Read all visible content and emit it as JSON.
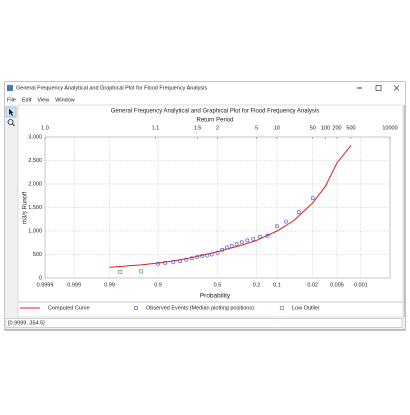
{
  "window": {
    "title": "General Frequency Analytical and Graphical Plot for Flood Frequency Analysis",
    "menu": [
      "File",
      "Edit",
      "View",
      "Window"
    ],
    "status": "[0.9999, 354.5]"
  },
  "chart_data": {
    "type": "probability-plot",
    "title": "General Frequency Analytical and Graphical Plot for Flood Frequency Analysis",
    "x_label": "Probability",
    "x2_label": "Return Period",
    "y_label": "m3/s Runoff",
    "xscale": "normal-probability",
    "xlim": [
      0.9999,
      0.0001
    ],
    "xticks": [
      0.9999,
      0.999,
      0.99,
      0.9,
      0.5,
      0.2,
      0.1,
      0.02,
      0.005,
      0.001
    ],
    "x2ticks": [
      {
        "value": 1.0001,
        "label": "1.0"
      },
      1.1,
      1.5,
      2,
      5,
      10,
      50,
      100,
      200,
      500,
      10000
    ],
    "ylim": [
      0,
      3000
    ],
    "yticks": [
      0,
      500,
      {
        "value": 1000,
        "label": "1,000"
      },
      {
        "value": 1500,
        "label": "1,500"
      },
      {
        "value": 2000,
        "label": "2,000"
      },
      {
        "value": 2500,
        "label": "2,500"
      },
      {
        "value": 3000,
        "label": "3,000"
      }
    ],
    "grid": true,
    "series": [
      {
        "name": "Computed Curve",
        "color": "#e02020",
        "marker": "line",
        "x": [
          0.99,
          0.95,
          0.9,
          0.8,
          0.7,
          0.5,
          0.3,
          0.2,
          0.1,
          0.05,
          0.02,
          0.01,
          0.005,
          0.002
        ],
        "values": [
          230,
          280,
          320,
          380,
          440,
          560,
          700,
          800,
          1000,
          1220,
          1600,
          1950,
          2450,
          2820
        ]
      },
      {
        "name": "Observed Events (Median plotting positions)",
        "color": "#3a3ad0",
        "marker": "circle",
        "x": [
          0.9,
          0.87,
          0.83,
          0.79,
          0.75,
          0.71,
          0.67,
          0.63,
          0.59,
          0.55,
          0.5,
          0.46,
          0.42,
          0.38,
          0.34,
          0.3,
          0.26,
          0.22,
          0.18,
          0.14,
          0.1,
          0.07,
          0.04,
          0.02
        ],
        "values": [
          300,
          320,
          340,
          360,
          390,
          420,
          450,
          470,
          480,
          500,
          540,
          600,
          650,
          680,
          720,
          760,
          800,
          830,
          880,
          900,
          1100,
          1200,
          1400,
          1700
        ]
      },
      {
        "name": "Low Outlier",
        "color": "#30a030",
        "marker": "square",
        "x": [
          0.982,
          0.95
        ],
        "values": [
          130,
          140
        ]
      }
    ]
  }
}
